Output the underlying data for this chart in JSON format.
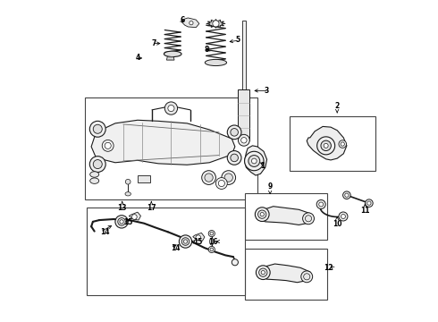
{
  "bg_color": "#ffffff",
  "line_color": "#1a1a1a",
  "fig_width": 4.9,
  "fig_height": 3.6,
  "dpi": 100,
  "boxes": {
    "crossmember": [
      0.08,
      0.38,
      0.62,
      0.7
    ],
    "hub_detail": [
      0.72,
      0.47,
      0.99,
      0.64
    ],
    "lower_arm": [
      0.58,
      0.255,
      0.84,
      0.4
    ],
    "upper_arm": [
      0.58,
      0.065,
      0.84,
      0.225
    ],
    "stab_bar": [
      0.085,
      0.08,
      0.58,
      0.355
    ]
  },
  "labels": {
    "1": [
      0.63,
      0.44,
      0.62,
      0.452,
      "left"
    ],
    "2": [
      0.87,
      0.66,
      0.87,
      0.645,
      "center"
    ],
    "3": [
      0.65,
      0.72,
      0.638,
      0.72,
      "left"
    ],
    "4": [
      0.255,
      0.828,
      0.272,
      0.828,
      "right"
    ],
    "5": [
      0.565,
      0.88,
      0.548,
      0.88,
      "left"
    ],
    "6": [
      0.385,
      0.938,
      0.4,
      0.932,
      "right"
    ],
    "7": [
      0.295,
      0.865,
      0.312,
      0.865,
      "right"
    ],
    "8": [
      0.465,
      0.845,
      0.452,
      0.845,
      "left"
    ],
    "9": [
      0.66,
      0.408,
      0.66,
      0.395,
      "center"
    ],
    "10": [
      0.872,
      0.322,
      0.872,
      0.338,
      "center"
    ],
    "11": [
      0.955,
      0.36,
      0.955,
      0.375,
      "center"
    ],
    "12": [
      0.855,
      0.168,
      0.84,
      0.18,
      "left"
    ],
    "13": [
      0.2,
      0.368,
      0.2,
      0.382,
      "center"
    ],
    "17": [
      0.292,
      0.368,
      0.292,
      0.382,
      "center"
    ],
    "14a": [
      0.13,
      0.282,
      0.148,
      0.282,
      "right"
    ],
    "15a": [
      0.195,
      0.31,
      0.182,
      0.298,
      "left"
    ],
    "14b": [
      0.352,
      0.228,
      0.37,
      0.228,
      "right"
    ],
    "15b": [
      0.415,
      0.248,
      0.4,
      0.238,
      "left"
    ],
    "16": [
      0.49,
      0.25,
      0.476,
      0.25,
      "left"
    ]
  }
}
